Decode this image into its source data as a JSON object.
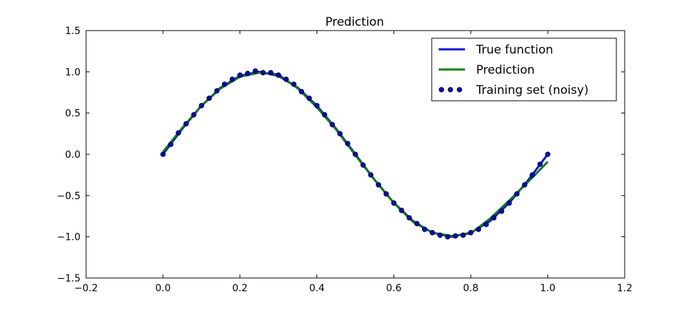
{
  "chart_data": {
    "type": "line",
    "title": "Prediction",
    "xlabel": "",
    "ylabel": "",
    "xlim": [
      -0.2,
      1.2
    ],
    "ylim": [
      -1.5,
      1.5
    ],
    "xticks": [
      -0.2,
      0.0,
      0.2,
      0.4,
      0.6,
      0.8,
      1.0,
      1.2
    ],
    "yticks": [
      -1.5,
      -1.0,
      -0.5,
      0.0,
      0.5,
      1.0,
      1.5
    ],
    "xtick_labels": [
      "−0.2",
      "0.0",
      "0.2",
      "0.4",
      "0.6",
      "0.8",
      "1.0",
      "1.2"
    ],
    "ytick_labels": [
      "−1.5",
      "−1.0",
      "−0.5",
      "0.0",
      "0.5",
      "1.0",
      "1.5"
    ],
    "grid": false,
    "legend_position": "top-right",
    "series": [
      {
        "name": "True function",
        "kind": "line",
        "color": "#0000ff",
        "x": [
          0.0,
          0.05,
          0.1,
          0.15,
          0.2,
          0.25,
          0.3,
          0.35,
          0.4,
          0.45,
          0.5,
          0.55,
          0.6,
          0.65,
          0.7,
          0.75,
          0.8,
          0.85,
          0.9,
          0.95,
          1.0
        ],
        "y": [
          0.0,
          0.309,
          0.588,
          0.809,
          0.951,
          1.0,
          0.951,
          0.809,
          0.588,
          0.309,
          0.0,
          -0.309,
          -0.588,
          -0.809,
          -0.951,
          -1.0,
          -0.951,
          -0.809,
          -0.588,
          -0.309,
          0.0
        ]
      },
      {
        "name": "Prediction",
        "kind": "line",
        "color": "#008000",
        "x": [
          0.0,
          0.05,
          0.1,
          0.15,
          0.2,
          0.25,
          0.3,
          0.35,
          0.4,
          0.45,
          0.5,
          0.55,
          0.6,
          0.65,
          0.7,
          0.75,
          0.8,
          0.85,
          0.9,
          0.95,
          1.0
        ],
        "y": [
          0.03,
          0.32,
          0.59,
          0.8,
          0.94,
          0.99,
          0.97,
          0.8,
          0.57,
          0.3,
          -0.01,
          -0.31,
          -0.59,
          -0.82,
          -0.95,
          -0.99,
          -0.96,
          -0.78,
          -0.56,
          -0.33,
          -0.09
        ]
      },
      {
        "name": "Training set (noisy)",
        "kind": "scatter",
        "color": "#0000ff",
        "edge_color": "#000000",
        "x": [
          0.0,
          0.02,
          0.04,
          0.06,
          0.08,
          0.1,
          0.12,
          0.14,
          0.16,
          0.18,
          0.2,
          0.22,
          0.24,
          0.26,
          0.28,
          0.3,
          0.32,
          0.34,
          0.36,
          0.38,
          0.4,
          0.42,
          0.44,
          0.46,
          0.48,
          0.5,
          0.52,
          0.54,
          0.56,
          0.58,
          0.6,
          0.62,
          0.64,
          0.66,
          0.68,
          0.7,
          0.72,
          0.74,
          0.76,
          0.78,
          0.8,
          0.82,
          0.84,
          0.86,
          0.88,
          0.9,
          0.92,
          0.94,
          0.96,
          0.98,
          1.0
        ],
        "y": [
          0.0,
          0.12,
          0.26,
          0.37,
          0.48,
          0.59,
          0.68,
          0.77,
          0.85,
          0.91,
          0.96,
          0.98,
          1.01,
          0.99,
          0.99,
          0.96,
          0.91,
          0.85,
          0.76,
          0.68,
          0.59,
          0.48,
          0.36,
          0.25,
          0.13,
          0.0,
          -0.13,
          -0.25,
          -0.37,
          -0.48,
          -0.59,
          -0.68,
          -0.77,
          -0.84,
          -0.91,
          -0.95,
          -0.98,
          -1.0,
          -0.99,
          -0.98,
          -0.95,
          -0.91,
          -0.85,
          -0.77,
          -0.69,
          -0.59,
          -0.48,
          -0.37,
          -0.25,
          -0.12,
          0.0
        ]
      }
    ]
  }
}
